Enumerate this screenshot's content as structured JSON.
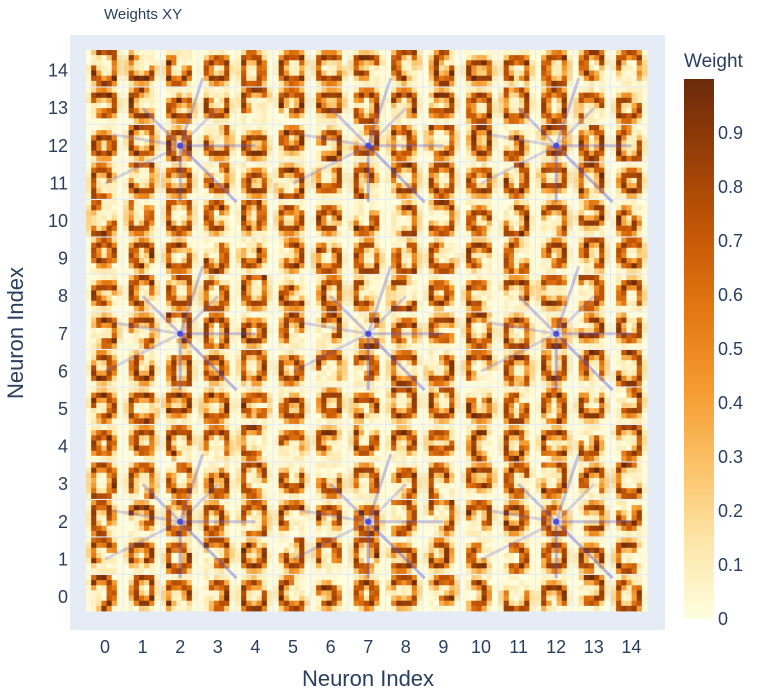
{
  "header": {
    "title": "Weights XY"
  },
  "chart_data": {
    "type": "heatmap",
    "title": "Weights XY",
    "xlabel": "Neuron Index",
    "ylabel": "Neuron Index",
    "x_ticks": [
      0,
      1,
      2,
      3,
      4,
      5,
      6,
      7,
      8,
      9,
      10,
      11,
      12,
      13,
      14
    ],
    "y_ticks": [
      0,
      1,
      2,
      3,
      4,
      5,
      6,
      7,
      8,
      9,
      10,
      11,
      12,
      13,
      14
    ],
    "xlim": [
      -0.5,
      14.5
    ],
    "ylim": [
      -0.5,
      14.5
    ],
    "grid": 15,
    "colorbar": {
      "title": "Weight",
      "ticks": [
        0,
        0.1,
        0.2,
        0.3,
        0.4,
        0.5,
        0.6,
        0.7,
        0.8,
        0.9
      ],
      "range": [
        0,
        1
      ],
      "colors": [
        "#fffee0",
        "#fde6a8",
        "#fbc167",
        "#f59a2e",
        "#e37712",
        "#c45706",
        "#983f07",
        "#6b2a0a"
      ]
    },
    "connection_centers": [
      [
        12,
        12
      ],
      [
        7,
        12
      ],
      [
        2,
        12
      ],
      [
        2,
        7
      ],
      [
        7,
        7
      ],
      [
        12,
        7
      ],
      [
        2,
        2
      ],
      [
        7,
        2
      ],
      [
        12,
        2
      ]
    ],
    "colors": {
      "plot_bg": "#e5ecf6",
      "connection": "#4b4bdc"
    }
  }
}
